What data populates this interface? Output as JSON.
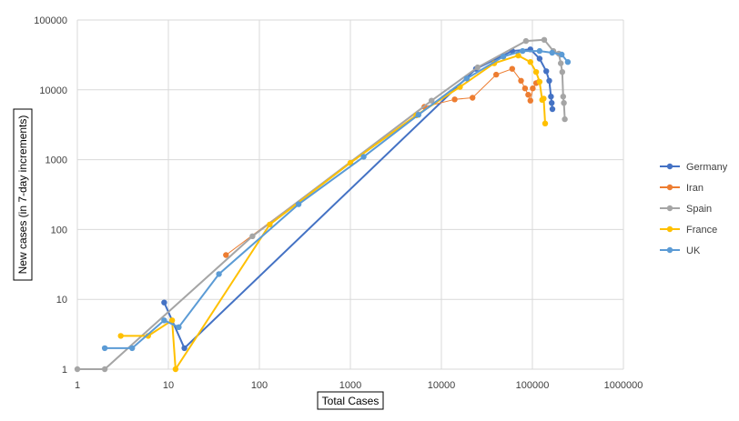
{
  "chart_data": {
    "type": "line",
    "title": "",
    "xlabel": "Total Cases",
    "ylabel": "New cases (in 7-day increments)",
    "xscale": "log",
    "yscale": "log",
    "xlim": [
      1,
      1000000
    ],
    "ylim": [
      1,
      100000
    ],
    "x_ticks": [
      "1",
      "10",
      "100",
      "1000",
      "10000",
      "100000",
      "1000000"
    ],
    "y_ticks": [
      "1",
      "10",
      "100",
      "1000",
      "10000",
      "100000"
    ],
    "grid": true,
    "legend": "right",
    "series": [
      {
        "name": "Germany",
        "color": "#4472C4",
        "points": [
          [
            9,
            9
          ],
          [
            15,
            2
          ],
          [
            24000,
            20000
          ],
          [
            60000,
            36000
          ],
          [
            95000,
            38000
          ],
          [
            120000,
            28000
          ],
          [
            142000,
            18500
          ],
          [
            153000,
            13500
          ],
          [
            160000,
            8000
          ],
          [
            163000,
            6500
          ],
          [
            166000,
            5300
          ]
        ]
      },
      {
        "name": "Iran",
        "color": "#ED7D31",
        "points": [
          [
            43,
            43
          ],
          [
            6500,
            5700
          ],
          [
            14000,
            7300
          ],
          [
            22000,
            7700
          ],
          [
            40000,
            16500
          ],
          [
            60000,
            20000
          ],
          [
            75000,
            13500
          ],
          [
            83000,
            10500
          ],
          [
            90000,
            8500
          ],
          [
            95000,
            7000
          ],
          [
            101000,
            10500
          ],
          [
            110000,
            12500
          ],
          [
            118000,
            13000
          ]
        ]
      },
      {
        "name": "Spain",
        "color": "#A5A5A5",
        "points": [
          [
            1,
            1
          ],
          [
            2,
            1
          ],
          [
            84,
            80
          ],
          [
            7800,
            7000
          ],
          [
            25000,
            21000
          ],
          [
            85000,
            50000
          ],
          [
            135000,
            52000
          ],
          [
            170000,
            36000
          ],
          [
            195000,
            33000
          ],
          [
            205000,
            24000
          ],
          [
            213000,
            18000
          ],
          [
            218000,
            8000
          ],
          [
            222000,
            6500
          ],
          [
            227000,
            3800
          ]
        ]
      },
      {
        "name": "France",
        "color": "#FFC000",
        "points": [
          [
            3,
            3
          ],
          [
            6,
            3
          ],
          [
            11,
            5
          ],
          [
            12,
            1
          ],
          [
            130,
            118
          ],
          [
            1000,
            900
          ],
          [
            5300,
            4300
          ],
          [
            16000,
            11000
          ],
          [
            38000,
            24000
          ],
          [
            70000,
            31000
          ],
          [
            95000,
            25000
          ],
          [
            110000,
            18000
          ],
          [
            120000,
            13000
          ],
          [
            128000,
            7200
          ],
          [
            133000,
            7500
          ],
          [
            138000,
            3300
          ]
        ]
      },
      {
        "name": "UK",
        "color": "#5B9BD5",
        "points": [
          [
            2,
            2
          ],
          [
            4,
            2
          ],
          [
            9,
            5
          ],
          [
            13,
            4
          ],
          [
            36,
            23
          ],
          [
            270,
            230
          ],
          [
            1400,
            1100
          ],
          [
            5600,
            4400
          ],
          [
            19000,
            14500
          ],
          [
            48000,
            30000
          ],
          [
            78000,
            36000
          ],
          [
            120000,
            36000
          ],
          [
            165000,
            34000
          ],
          [
            210000,
            32000
          ],
          [
            245000,
            25000
          ]
        ]
      }
    ]
  }
}
